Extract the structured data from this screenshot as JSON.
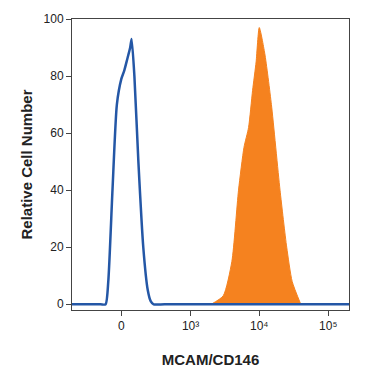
{
  "chart_data": {
    "type": "histogram_overlay",
    "x_label": "MCAM/CD146",
    "y_label": "Relative Cell Number",
    "xlim": [
      -500,
      200000
    ],
    "xticks": [
      0,
      {
        "value": 1000,
        "label": "10³"
      },
      {
        "value": 10000,
        "label": "10⁴"
      },
      {
        "value": 100000,
        "label": "10⁵"
      }
    ],
    "ylim": [
      -2,
      100
    ],
    "yticks": [
      0,
      20,
      40,
      60,
      80,
      100
    ],
    "grid": false,
    "series": [
      {
        "type": "area",
        "color": "#f5821f",
        "x": [
          2000,
          3000,
          4000,
          5000,
          6000,
          7000,
          8000,
          9000,
          10000,
          12000,
          15000,
          20000,
          25000,
          30000,
          40000
        ],
        "values": [
          0,
          3,
          15,
          40,
          55,
          62,
          75,
          85,
          97,
          88,
          70,
          40,
          20,
          8,
          0
        ]
      },
      {
        "type": "line",
        "color": "#2457a6",
        "x": [
          -500,
          -150,
          -110,
          -90,
          -60,
          -30,
          0,
          20,
          40,
          60,
          70,
          90,
          120,
          160,
          200,
          230,
          260,
          400,
          200000
        ],
        "values": [
          0,
          0,
          0,
          8,
          40,
          70,
          79,
          82,
          86,
          90,
          93,
          80,
          50,
          20,
          5,
          1,
          0,
          0,
          0
        ]
      }
    ]
  }
}
